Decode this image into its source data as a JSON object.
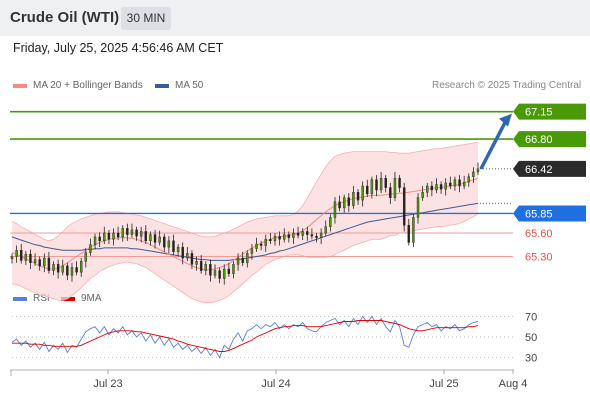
{
  "header": {
    "instrument": "Crude Oil (WTI)",
    "timeframe": "30 MIN"
  },
  "datetime": "Friday, July 25, 2025 4:56:46 AM CET",
  "legend": {
    "ma20_bollinger": {
      "label": "MA 20 + Bollinger Bands",
      "color": "#f28b82"
    },
    "ma50": {
      "label": "MA 50",
      "color": "#3b5b92"
    },
    "rsi": {
      "label": "RSI",
      "color": "#5b7fd6"
    },
    "rsi_ma": {
      "label": "9MA",
      "color": "#e00000"
    }
  },
  "credit": "Research © 2025 Trading Central",
  "chart_data": [
    {
      "type": "candlestick",
      "y_range": [
        65.0,
        67.35
      ],
      "levels": [
        {
          "value": 67.15,
          "label": "67.15",
          "kind": "target",
          "color": "#4a9a08"
        },
        {
          "value": 66.8,
          "label": "66.80",
          "kind": "target",
          "color": "#4a9a08"
        },
        {
          "value": 66.42,
          "label": "66.42",
          "kind": "last",
          "color": "#2b2b2b"
        },
        {
          "value": 65.85,
          "label": "65.85",
          "kind": "pivot",
          "color": "#2a6fd6"
        },
        {
          "value": 65.6,
          "label": "65.60",
          "kind": "support",
          "color": "#e05050"
        },
        {
          "value": 65.3,
          "label": "65.30",
          "kind": "support",
          "color": "#e05050"
        }
      ],
      "x_ticks": [
        "Jul 23",
        "Jul 24",
        "Jul 25",
        "Aug 4"
      ],
      "closes": [
        65.3,
        65.38,
        65.25,
        65.33,
        65.22,
        65.26,
        65.18,
        65.28,
        65.12,
        65.2,
        65.1,
        65.18,
        65.06,
        65.16,
        65.1,
        65.24,
        65.35,
        65.45,
        65.55,
        65.5,
        65.6,
        65.52,
        65.6,
        65.55,
        65.66,
        65.58,
        65.64,
        65.56,
        65.62,
        65.5,
        65.58,
        65.48,
        65.55,
        65.42,
        65.5,
        65.36,
        65.42,
        65.28,
        65.34,
        65.2,
        65.24,
        65.12,
        65.2,
        65.06,
        65.12,
        65.02,
        65.14,
        65.08,
        65.2,
        65.28,
        65.22,
        65.34,
        65.4,
        65.46,
        65.44,
        65.52,
        65.5,
        65.56,
        65.52,
        65.58,
        65.54,
        65.6,
        65.57,
        65.62,
        65.58,
        65.56,
        65.54,
        65.6,
        65.68,
        65.8,
        66.0,
        65.92,
        66.05,
        65.95,
        66.12,
        66.02,
        66.2,
        66.1,
        66.28,
        66.15,
        66.3,
        66.18,
        66.05,
        66.3,
        66.18,
        65.7,
        65.48,
        65.8,
        66.05,
        66.12,
        66.2,
        66.15,
        66.22,
        66.16,
        66.24,
        66.2,
        66.28,
        66.2,
        66.25,
        66.32,
        66.38,
        66.42
      ],
      "ma20": [
        65.35,
        65.33,
        65.3,
        65.27,
        65.24,
        65.21,
        65.18,
        65.16,
        65.14,
        65.14,
        65.15,
        65.18,
        65.22,
        65.26,
        65.3,
        65.34,
        65.38,
        65.42,
        65.45,
        65.48,
        65.5,
        65.52,
        65.53,
        65.54,
        65.54,
        65.54,
        65.53,
        65.52,
        65.5,
        65.48,
        65.45,
        65.42,
        65.39,
        65.36,
        65.33,
        65.3,
        65.27,
        65.24,
        65.21,
        65.18,
        65.16,
        65.14,
        65.13,
        65.13,
        65.14,
        65.16,
        65.18,
        65.21,
        65.25,
        65.29,
        65.33,
        65.37,
        65.41,
        65.44,
        65.47,
        65.5,
        65.52,
        65.54,
        65.55,
        65.56,
        65.57,
        65.58,
        65.6,
        65.63,
        65.67,
        65.72,
        65.77,
        65.82,
        65.87,
        65.91,
        65.95,
        65.98,
        66.0,
        66.02,
        66.04,
        66.05,
        66.06,
        66.07,
        66.08,
        66.08,
        66.08,
        66.09,
        66.1,
        66.1,
        66.11,
        66.11,
        66.12,
        66.13,
        66.14,
        66.15,
        66.16,
        66.17,
        66.18,
        66.18,
        66.19,
        66.2,
        66.21,
        66.22,
        66.24,
        66.26,
        66.28,
        66.3
      ],
      "ma50": [
        65.55,
        65.53,
        65.51,
        65.49,
        65.47,
        65.45,
        65.44,
        65.42,
        65.41,
        65.4,
        65.39,
        65.38,
        65.38,
        65.38,
        65.38,
        65.38,
        65.39,
        65.39,
        65.4,
        65.4,
        65.41,
        65.41,
        65.41,
        65.41,
        65.41,
        65.41,
        65.4,
        65.4,
        65.39,
        65.38,
        65.37,
        65.36,
        65.35,
        65.34,
        65.33,
        65.32,
        65.31,
        65.3,
        65.29,
        65.28,
        65.27,
        65.26,
        65.26,
        65.25,
        65.25,
        65.25,
        65.25,
        65.25,
        65.26,
        65.26,
        65.27,
        65.28,
        65.29,
        65.3,
        65.31,
        65.32,
        65.34,
        65.35,
        65.37,
        65.38,
        65.4,
        65.42,
        65.44,
        65.46,
        65.48,
        65.5,
        65.52,
        65.54,
        65.56,
        65.58,
        65.6,
        65.62,
        65.64,
        65.66,
        65.68,
        65.7,
        65.72,
        65.74,
        65.75,
        65.76,
        65.77,
        65.78,
        65.79,
        65.8,
        65.81,
        65.82,
        65.83,
        65.84,
        65.85,
        65.86,
        65.87,
        65.88,
        65.89,
        65.9,
        65.91,
        65.92,
        65.93,
        65.94,
        65.95,
        65.96,
        65.97,
        65.98
      ],
      "bb_upper": [
        65.75,
        65.72,
        65.68,
        65.65,
        65.62,
        65.58,
        65.55,
        65.52,
        65.5,
        65.52,
        65.56,
        65.62,
        65.68,
        65.72,
        65.75,
        65.78,
        65.8,
        65.82,
        65.84,
        65.85,
        65.86,
        65.87,
        65.87,
        65.87,
        65.86,
        65.85,
        65.84,
        65.83,
        65.82,
        65.8,
        65.78,
        65.76,
        65.74,
        65.72,
        65.7,
        65.68,
        65.66,
        65.64,
        65.62,
        65.6,
        65.58,
        65.56,
        65.55,
        65.55,
        65.56,
        65.58,
        65.6,
        65.62,
        65.65,
        65.68,
        65.71,
        65.74,
        65.76,
        65.78,
        65.79,
        65.8,
        65.81,
        65.82,
        65.82,
        65.82,
        65.82,
        65.84,
        65.88,
        65.95,
        66.05,
        66.15,
        66.25,
        66.35,
        66.45,
        66.52,
        66.58,
        66.6,
        66.62,
        66.63,
        66.64,
        66.64,
        66.64,
        66.64,
        66.64,
        66.64,
        66.64,
        66.64,
        66.63,
        66.63,
        66.62,
        66.62,
        66.62,
        66.63,
        66.64,
        66.65,
        66.66,
        66.67,
        66.68,
        66.68,
        66.69,
        66.7,
        66.71,
        66.72,
        66.73,
        66.74,
        66.75,
        66.76
      ],
      "bb_lower": [
        64.95,
        64.94,
        64.92,
        64.89,
        64.86,
        64.84,
        64.81,
        64.8,
        64.78,
        64.76,
        64.74,
        64.74,
        64.76,
        64.8,
        64.85,
        64.9,
        64.96,
        65.02,
        65.06,
        65.11,
        65.14,
        65.17,
        65.19,
        65.21,
        65.22,
        65.23,
        65.22,
        65.21,
        65.18,
        65.16,
        65.12,
        65.08,
        65.04,
        65.0,
        64.96,
        64.92,
        64.88,
        64.84,
        64.8,
        64.76,
        64.74,
        64.72,
        64.71,
        64.71,
        64.72,
        64.74,
        64.76,
        64.8,
        64.85,
        64.9,
        64.95,
        65.0,
        65.06,
        65.1,
        65.15,
        65.2,
        65.23,
        65.26,
        65.28,
        65.3,
        65.32,
        65.32,
        65.32,
        65.31,
        65.29,
        65.29,
        65.29,
        65.29,
        65.29,
        65.3,
        65.32,
        65.36,
        65.38,
        65.41,
        65.44,
        65.46,
        65.48,
        65.5,
        65.52,
        65.52,
        65.52,
        65.54,
        65.57,
        65.57,
        65.6,
        65.6,
        65.62,
        65.63,
        65.64,
        65.65,
        65.66,
        65.67,
        65.68,
        65.68,
        65.69,
        65.7,
        65.71,
        65.72,
        65.75,
        65.78,
        65.81,
        65.84
      ],
      "forecast_arrow": {
        "from": 66.42,
        "to": 67.15,
        "color": "#2f68b0"
      }
    },
    {
      "type": "line",
      "name": "RSI",
      "y_range": [
        20,
        80
      ],
      "y_ticks": [
        70,
        50,
        30
      ],
      "rsi": [
        45,
        48,
        42,
        46,
        40,
        44,
        38,
        45,
        36,
        42,
        38,
        44,
        35,
        42,
        40,
        48,
        55,
        58,
        60,
        54,
        60,
        52,
        58,
        54,
        60,
        52,
        56,
        50,
        54,
        46,
        52,
        44,
        50,
        42,
        48,
        40,
        44,
        38,
        42,
        36,
        40,
        34,
        40,
        32,
        38,
        30,
        42,
        38,
        48,
        54,
        46,
        56,
        58,
        62,
        58,
        62,
        60,
        64,
        58,
        62,
        58,
        62,
        60,
        64,
        58,
        56,
        55,
        60,
        64,
        66,
        68,
        62,
        66,
        60,
        68,
        62,
        70,
        64,
        70,
        62,
        68,
        60,
        55,
        66,
        60,
        42,
        40,
        52,
        60,
        62,
        64,
        60,
        62,
        56,
        60,
        58,
        62,
        56,
        58,
        62,
        64,
        65
      ],
      "rsi_ma": [
        44,
        44,
        44,
        44,
        43,
        43,
        43,
        42,
        42,
        41,
        41,
        41,
        41,
        41,
        41,
        42,
        44,
        46,
        48,
        50,
        52,
        54,
        55,
        56,
        56,
        56,
        56,
        55,
        55,
        54,
        53,
        52,
        51,
        50,
        49,
        48,
        46,
        45,
        43,
        42,
        41,
        40,
        39,
        38,
        37,
        36,
        36,
        37,
        39,
        41,
        43,
        45,
        47,
        50,
        52,
        54,
        56,
        58,
        59,
        60,
        60,
        61,
        61,
        61,
        60,
        60,
        60,
        60,
        61,
        62,
        63,
        64,
        65,
        65,
        65,
        66,
        66,
        66,
        66,
        66,
        66,
        65,
        64,
        63,
        62,
        60,
        58,
        57,
        56,
        56,
        57,
        58,
        59,
        59,
        59,
        59,
        59,
        59,
        59,
        60,
        60,
        61
      ]
    }
  ]
}
